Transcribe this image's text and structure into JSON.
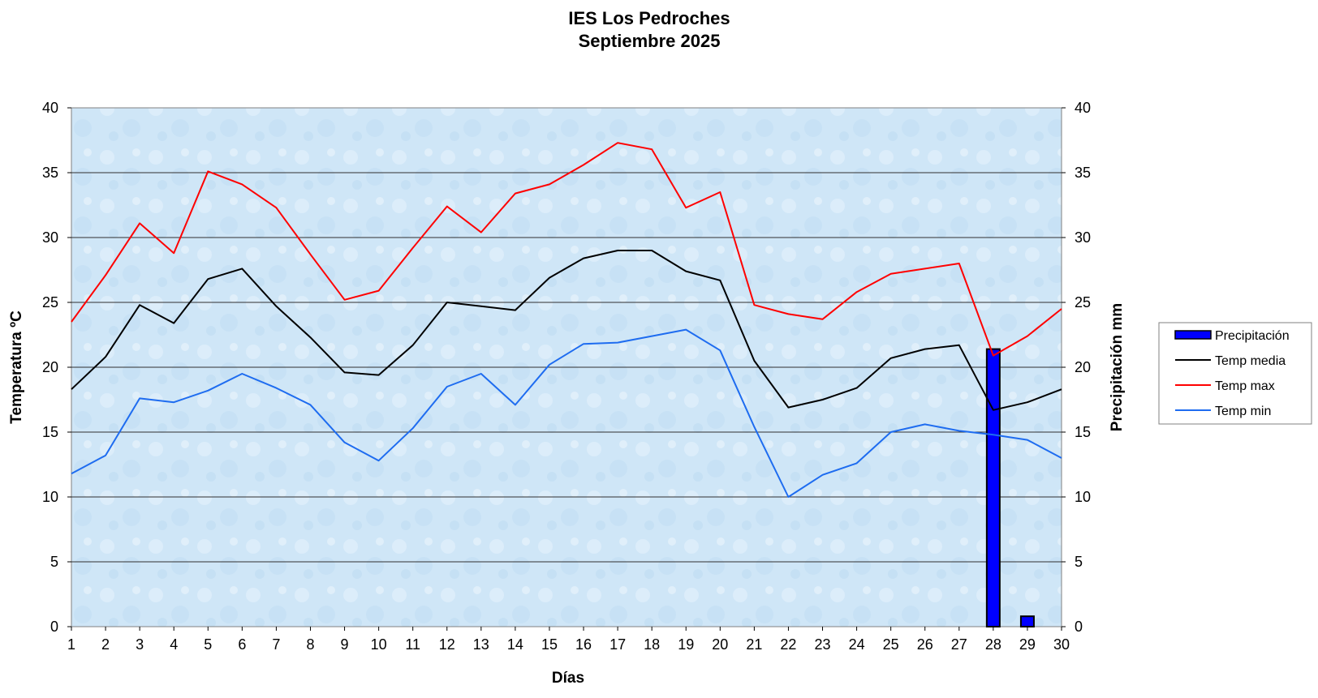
{
  "chart_data": {
    "type": "line",
    "title": "IES Los Pedroches",
    "subtitle": "Septiembre 2025",
    "xlabel": "Días",
    "ylabel_left": "Temperatura ºC",
    "ylabel_right": "Precipitación mm",
    "x": [
      1,
      2,
      3,
      4,
      5,
      6,
      7,
      8,
      9,
      10,
      11,
      12,
      13,
      14,
      15,
      16,
      17,
      18,
      19,
      20,
      21,
      22,
      23,
      24,
      25,
      26,
      27,
      28,
      29,
      30
    ],
    "ylim_left": [
      0,
      40
    ],
    "ylim_right": [
      0,
      40
    ],
    "yticks": [
      0,
      5,
      10,
      15,
      20,
      25,
      30,
      35,
      40
    ],
    "grid": true,
    "legend_position": "right",
    "series": [
      {
        "name": "Precipitación",
        "kind": "bar",
        "axis": "right",
        "color": "#0000ff",
        "values": [
          0,
          0,
          0,
          0,
          0,
          0,
          0,
          0,
          0,
          0,
          0,
          0,
          0,
          0,
          0,
          0,
          0,
          0,
          0,
          0,
          0,
          0,
          0,
          0,
          0,
          0,
          0,
          21.4,
          0.8,
          0
        ]
      },
      {
        "name": "Temp media",
        "kind": "line",
        "axis": "left",
        "color": "#000000",
        "values": [
          18.3,
          20.8,
          24.8,
          23.4,
          26.8,
          27.6,
          24.7,
          22.3,
          19.6,
          19.4,
          21.7,
          25.0,
          24.7,
          24.4,
          26.9,
          28.4,
          29.0,
          29.0,
          27.4,
          26.7,
          20.5,
          16.9,
          17.5,
          18.4,
          20.7,
          21.4,
          21.7,
          16.7,
          17.3,
          18.3
        ]
      },
      {
        "name": "Temp max",
        "kind": "line",
        "axis": "left",
        "color": "#ff0000",
        "values": [
          23.5,
          27.1,
          31.1,
          28.8,
          35.1,
          34.1,
          32.3,
          28.7,
          25.2,
          25.9,
          29.2,
          32.4,
          30.4,
          33.4,
          34.1,
          35.6,
          37.3,
          36.8,
          32.3,
          33.5,
          24.8,
          24.1,
          23.7,
          25.8,
          27.2,
          27.6,
          28.0,
          20.9,
          22.4,
          24.5
        ]
      },
      {
        "name": "Temp min",
        "kind": "line",
        "axis": "left",
        "color": "#1e6cf0",
        "values": [
          11.8,
          13.2,
          17.6,
          17.3,
          18.2,
          19.5,
          18.4,
          17.1,
          14.2,
          12.8,
          15.3,
          18.5,
          19.5,
          17.1,
          20.2,
          21.8,
          21.9,
          22.4,
          22.9,
          21.3,
          15.4,
          10.0,
          11.7,
          12.6,
          15.0,
          15.6,
          15.1,
          14.8,
          14.4,
          13.0
        ]
      }
    ]
  },
  "colors": {
    "plot_background": "#cfe6f7",
    "gridline": "#303030",
    "bar_outline": "#000000"
  }
}
